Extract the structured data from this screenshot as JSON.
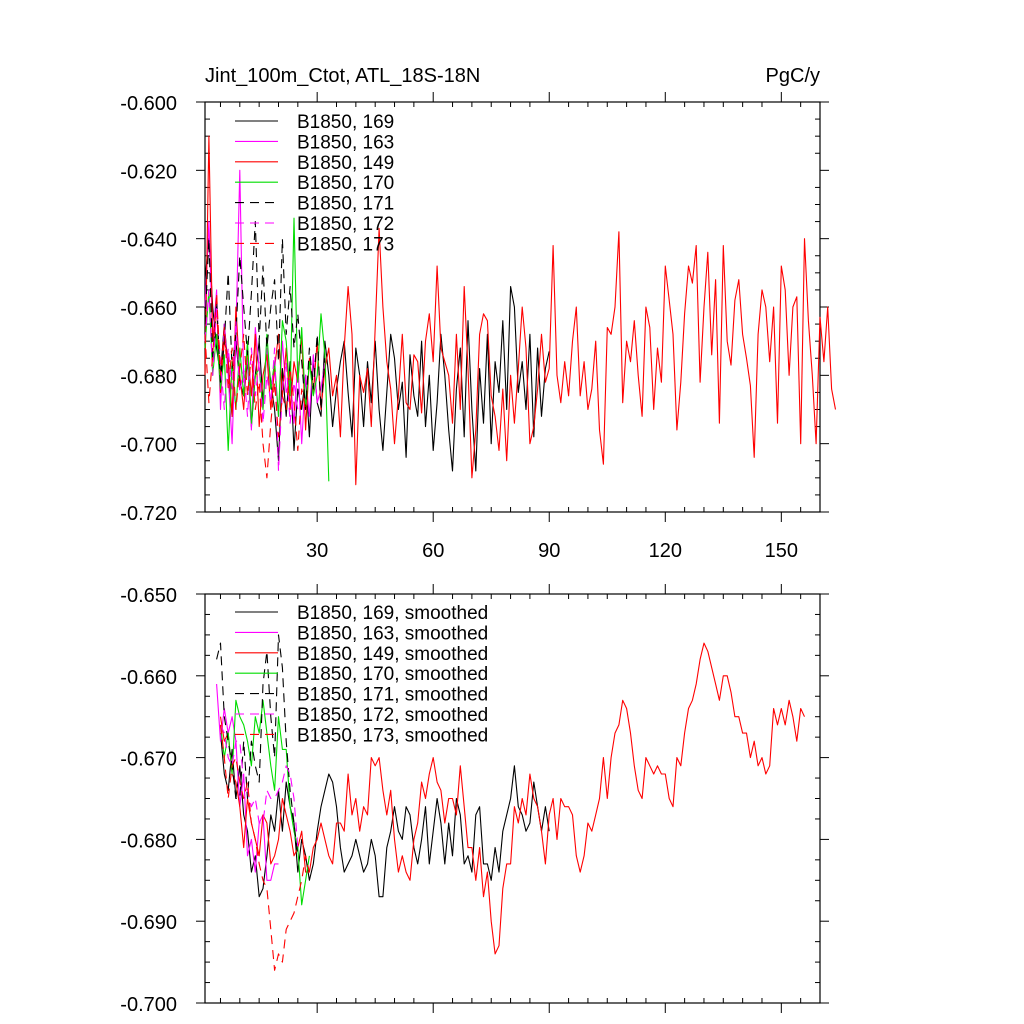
{
  "colors": {
    "169": "#000000",
    "163": "#ff00ff",
    "149": "#ff0000",
    "170": "#00dd00",
    "171": "#000000",
    "172": "#ff00ff",
    "173": "#ff0000"
  },
  "chart_data": [
    {
      "type": "line",
      "title": "Jint_100m_Ctot, ATL_18S-18N",
      "units": "PgC/y",
      "xlim": [
        1,
        160
      ],
      "ylim": [
        -0.72,
        -0.6
      ],
      "x_ticks": [
        30,
        60,
        90,
        120,
        150
      ],
      "y_ticks": [
        -0.72,
        -0.7,
        -0.68,
        -0.66,
        -0.64,
        -0.62,
        -0.6
      ],
      "y_tick_labels": [
        "-0.720",
        "-0.700",
        "-0.680",
        "-0.660",
        "-0.640",
        "-0.620",
        "-0.600"
      ],
      "legend_position": "top-left",
      "series": [
        {
          "name": "B1850, 169",
          "key": "169",
          "dash": false,
          "x0": 1,
          "values": [
            -0.652,
            -0.64,
            -0.66,
            -0.672,
            -0.68,
            -0.665,
            -0.678,
            -0.692,
            -0.67,
            -0.682,
            -0.686,
            -0.676,
            -0.695,
            -0.68,
            -0.67,
            -0.688,
            -0.672,
            -0.682,
            -0.69,
            -0.705,
            -0.678,
            -0.692,
            -0.676,
            -0.702,
            -0.684,
            -0.69,
            -0.68,
            -0.698,
            -0.675,
            -0.688,
            -0.692,
            -0.67,
            -0.68,
            -0.695,
            -0.684,
            -0.676,
            -0.67,
            -0.685,
            -0.698,
            -0.672,
            -0.68,
            -0.695,
            -0.676,
            -0.688,
            -0.67,
            -0.69,
            -0.702,
            -0.685,
            -0.668,
            -0.675,
            -0.69,
            -0.682,
            -0.704,
            -0.674,
            -0.686,
            -0.692,
            -0.67,
            -0.695,
            -0.68,
            -0.702,
            -0.688,
            -0.668,
            -0.68,
            -0.696,
            -0.708,
            -0.684,
            -0.672,
            -0.698,
            -0.664,
            -0.69,
            -0.708,
            -0.678,
            -0.694,
            -0.668,
            -0.7,
            -0.676,
            -0.685,
            -0.664,
            -0.69,
            -0.654,
            -0.66,
            -0.685,
            -0.676,
            -0.69,
            -0.668,
            -0.698,
            -0.672,
            -0.692,
            -0.678,
            -0.673
          ]
        },
        {
          "name": "B1850, 163",
          "key": "163",
          "dash": false,
          "x0": 1,
          "values": [
            -0.66,
            -0.635,
            -0.67,
            -0.655,
            -0.69,
            -0.665,
            -0.68,
            -0.7,
            -0.668,
            -0.62,
            -0.682,
            -0.675,
            -0.696,
            -0.666,
            -0.678,
            -0.69,
            -0.672,
            -0.684,
            -0.678,
            -0.692,
            -0.67,
            -0.685,
            -0.681,
            -0.694,
            -0.676,
            -0.7,
            -0.68,
            -0.692,
            -0.674,
            -0.688,
            -0.684,
            -0.676
          ]
        },
        {
          "name": "B1850, 149",
          "key": "149",
          "dash": false,
          "x0": 1,
          "values": [
            -0.68,
            -0.61,
            -0.67,
            -0.66,
            -0.685,
            -0.67,
            -0.675,
            -0.692,
            -0.66,
            -0.68,
            -0.69,
            -0.672,
            -0.686,
            -0.668,
            -0.695,
            -0.68,
            -0.674,
            -0.69,
            -0.678,
            -0.668,
            -0.686,
            -0.672,
            -0.69,
            -0.676,
            -0.682,
            -0.668,
            -0.696,
            -0.675,
            -0.685,
            -0.67,
            -0.69,
            -0.678,
            -0.672,
            -0.686,
            -0.68,
            -0.698,
            -0.672,
            -0.654,
            -0.668,
            -0.712,
            -0.68,
            -0.685,
            -0.678,
            -0.695,
            -0.666,
            -0.637,
            -0.66,
            -0.676,
            -0.684,
            -0.7,
            -0.686,
            -0.668,
            -0.688,
            -0.69,
            -0.674,
            -0.676,
            -0.691,
            -0.67,
            -0.662,
            -0.676,
            -0.648,
            -0.672,
            -0.676,
            -0.68,
            -0.694,
            -0.668,
            -0.69,
            -0.654,
            -0.678,
            -0.71,
            -0.696,
            -0.668,
            -0.662,
            -0.664,
            -0.686,
            -0.692,
            -0.702,
            -0.684,
            -0.705,
            -0.68,
            -0.694,
            -0.678,
            -0.66,
            -0.672,
            -0.7,
            -0.695,
            -0.684,
            -0.668,
            -0.682,
            -0.678,
            -0.642,
            -0.68,
            -0.688,
            -0.676,
            -0.686,
            -0.67,
            -0.66,
            -0.686,
            -0.676,
            -0.69,
            -0.684,
            -0.67,
            -0.696,
            -0.706,
            -0.666,
            -0.668,
            -0.66,
            -0.638,
            -0.688,
            -0.67,
            -0.676,
            -0.664,
            -0.68,
            -0.692,
            -0.66,
            -0.666,
            -0.69,
            -0.672,
            -0.682,
            -0.648,
            -0.658,
            -0.668,
            -0.696,
            -0.682,
            -0.662,
            -0.648,
            -0.653,
            -0.642,
            -0.682,
            -0.66,
            -0.644,
            -0.674,
            -0.652,
            -0.694,
            -0.642,
            -0.67,
            -0.677,
            -0.658,
            -0.652,
            -0.668,
            -0.675,
            -0.683,
            -0.704,
            -0.668,
            -0.655,
            -0.66,
            -0.676,
            -0.66,
            -0.694,
            -0.648,
            -0.655,
            -0.68,
            -0.66,
            -0.657,
            -0.7,
            -0.64,
            -0.664,
            -0.68,
            -0.7,
            -0.663,
            -0.676,
            -0.66,
            -0.684,
            -0.69
          ]
        },
        {
          "name": "B1850, 170",
          "key": "170",
          "dash": false,
          "x0": 1,
          "values": [
            -0.672,
            -0.655,
            -0.68,
            -0.668,
            -0.684,
            -0.674,
            -0.702,
            -0.676,
            -0.69,
            -0.672,
            -0.686,
            -0.67,
            -0.694,
            -0.68,
            -0.678,
            -0.69,
            -0.668,
            -0.684,
            -0.676,
            -0.692,
            -0.664,
            -0.67,
            -0.686,
            -0.634,
            -0.682,
            -0.666,
            -0.69,
            -0.676,
            -0.686,
            -0.68,
            -0.662,
            -0.674,
            -0.711
          ]
        },
        {
          "name": "B1850, 171",
          "key": "171",
          "dash": true,
          "x0": 1,
          "values": [
            -0.665,
            -0.64,
            -0.676,
            -0.658,
            -0.682,
            -0.67,
            -0.65,
            -0.678,
            -0.668,
            -0.645,
            -0.66,
            -0.674,
            -0.656,
            -0.635,
            -0.67,
            -0.648,
            -0.672,
            -0.66,
            -0.652,
            -0.676,
            -0.64,
            -0.668,
            -0.654,
            -0.672,
            -0.662,
            -0.676,
            -0.69,
            -0.672,
            -0.684,
            -0.668,
            -0.69,
            -0.675
          ]
        },
        {
          "name": "B1850, 172",
          "key": "172",
          "dash": true,
          "x0": 1,
          "values": [
            -0.67,
            -0.655,
            -0.68,
            -0.66,
            -0.676,
            -0.69,
            -0.672,
            -0.684,
            -0.664,
            -0.685,
            -0.678,
            -0.692,
            -0.672,
            -0.686,
            -0.676,
            -0.694,
            -0.68,
            -0.688,
            -0.672,
            -0.708,
            -0.684,
            -0.676,
            -0.694,
            -0.682,
            -0.69
          ]
        },
        {
          "name": "B1850, 173",
          "key": "173",
          "dash": true,
          "x0": 1,
          "values": [
            -0.668,
            -0.688,
            -0.674,
            -0.656,
            -0.68,
            -0.666,
            -0.684,
            -0.672,
            -0.69,
            -0.678,
            -0.668,
            -0.686,
            -0.674,
            -0.69,
            -0.682,
            -0.7,
            -0.71,
            -0.694,
            -0.682,
            -0.698,
            -0.686,
            -0.69,
            -0.678,
            -0.688,
            -0.702,
            -0.684,
            -0.69
          ]
        }
      ]
    },
    {
      "type": "line",
      "xlim": [
        1,
        160
      ],
      "ylim": [
        -0.7,
        -0.65
      ],
      "x_ticks": [
        30,
        60,
        90,
        120,
        150
      ],
      "y_ticks": [
        -0.7,
        -0.69,
        -0.68,
        -0.67,
        -0.66,
        -0.65
      ],
      "y_tick_labels": [
        "-0.700",
        "-0.690",
        "-0.680",
        "-0.670",
        "-0.660",
        "-0.650"
      ],
      "legend_position": "top-left",
      "series": [
        {
          "name": "B1850, 169, smoothed",
          "key": "169",
          "dash": false,
          "x0": 5,
          "values": [
            -0.667,
            -0.672,
            -0.674,
            -0.669,
            -0.675,
            -0.671,
            -0.677,
            -0.679,
            -0.684,
            -0.682,
            -0.687,
            -0.686,
            -0.682,
            -0.677,
            -0.679,
            -0.674,
            -0.679,
            -0.673,
            -0.676,
            -0.678,
            -0.684,
            -0.68,
            -0.682,
            -0.685,
            -0.683,
            -0.679,
            -0.676,
            -0.674,
            -0.672,
            -0.673,
            -0.676,
            -0.681,
            -0.684,
            -0.683,
            -0.682,
            -0.68,
            -0.682,
            -0.684,
            -0.683,
            -0.68,
            -0.682,
            -0.687,
            -0.687,
            -0.681,
            -0.679,
            -0.676,
            -0.679,
            -0.68,
            -0.676,
            -0.677,
            -0.681,
            -0.683,
            -0.68,
            -0.676,
            -0.683,
            -0.679,
            -0.675,
            -0.678,
            -0.683,
            -0.678,
            -0.682,
            -0.675,
            -0.677,
            -0.683,
            -0.682,
            -0.684,
            -0.677,
            -0.676,
            -0.683,
            -0.683,
            -0.685,
            -0.681,
            -0.684,
            -0.679,
            -0.677,
            -0.675,
            -0.671,
            -0.676,
            -0.677,
            -0.679,
            -0.678,
            -0.673,
            -0.676,
            -0.679,
            -0.676,
            -0.679
          ]
        },
        {
          "name": "B1850, 163, smoothed",
          "key": "163",
          "dash": false,
          "x0": 4,
          "values": [
            -0.661,
            -0.668,
            -0.664,
            -0.667,
            -0.665,
            -0.668,
            -0.676,
            -0.672,
            -0.682,
            -0.68,
            -0.684,
            -0.678,
            -0.677,
            -0.685,
            -0.685,
            -0.683,
            -0.683
          ]
        },
        {
          "name": "B1850, 149, smoothed",
          "key": "149",
          "dash": false,
          "x0": 5,
          "values": [
            -0.665,
            -0.668,
            -0.667,
            -0.672,
            -0.673,
            -0.676,
            -0.681,
            -0.675,
            -0.678,
            -0.68,
            -0.682,
            -0.677,
            -0.678,
            -0.683,
            -0.682,
            -0.68,
            -0.675,
            -0.677,
            -0.679,
            -0.682,
            -0.681,
            -0.679,
            -0.684,
            -0.684,
            -0.681,
            -0.68,
            -0.678,
            -0.68,
            -0.682,
            -0.683,
            -0.678,
            -0.678,
            -0.679,
            -0.672,
            -0.677,
            -0.675,
            -0.679,
            -0.676,
            -0.677,
            -0.67,
            -0.671,
            -0.67,
            -0.674,
            -0.677,
            -0.674,
            -0.68,
            -0.684,
            -0.682,
            -0.684,
            -0.685,
            -0.68,
            -0.678,
            -0.673,
            -0.675,
            -0.672,
            -0.67,
            -0.673,
            -0.674,
            -0.678,
            -0.675,
            -0.675,
            -0.677,
            -0.671,
            -0.676,
            -0.681,
            -0.681,
            -0.685,
            -0.681,
            -0.687,
            -0.684,
            -0.69,
            -0.694,
            -0.693,
            -0.686,
            -0.683,
            -0.683,
            -0.676,
            -0.678,
            -0.675,
            -0.677,
            -0.672,
            -0.675,
            -0.676,
            -0.679,
            -0.683,
            -0.677,
            -0.675,
            -0.68,
            -0.675,
            -0.676,
            -0.676,
            -0.677,
            -0.682,
            -0.684,
            -0.682,
            -0.678,
            -0.679,
            -0.677,
            -0.675,
            -0.67,
            -0.675,
            -0.67,
            -0.667,
            -0.666,
            -0.663,
            -0.664,
            -0.667,
            -0.671,
            -0.674,
            -0.675,
            -0.67,
            -0.671,
            -0.672,
            -0.671,
            -0.672,
            -0.672,
            -0.675,
            -0.676,
            -0.67,
            -0.671,
            -0.667,
            -0.664,
            -0.663,
            -0.661,
            -0.658,
            -0.656,
            -0.657,
            -0.659,
            -0.661,
            -0.663,
            -0.66,
            -0.66,
            -0.662,
            -0.665,
            -0.665,
            -0.667,
            -0.667,
            -0.67,
            -0.668,
            -0.671,
            -0.67,
            -0.672,
            -0.671,
            -0.664,
            -0.666,
            -0.664,
            -0.666,
            -0.663,
            -0.665,
            -0.668,
            -0.664,
            -0.665
          ]
        },
        {
          "name": "B1850, 170, smoothed",
          "key": "170",
          "dash": false,
          "x0": 5,
          "values": [
            -0.666,
            -0.67,
            -0.667,
            -0.672,
            -0.663,
            -0.665,
            -0.666,
            -0.668,
            -0.671,
            -0.665,
            -0.667,
            -0.663,
            -0.667,
            -0.671,
            -0.674,
            -0.665,
            -0.669,
            -0.669,
            -0.676,
            -0.679,
            -0.681,
            -0.688,
            -0.685,
            -0.682
          ]
        },
        {
          "name": "B1850, 171, smoothed",
          "key": "171",
          "dash": true,
          "x0": 4,
          "values": [
            -0.658,
            -0.656,
            -0.665,
            -0.668,
            -0.671,
            -0.675,
            -0.675,
            -0.668,
            -0.675,
            -0.668,
            -0.671,
            -0.673,
            -0.661,
            -0.657,
            -0.665,
            -0.67,
            -0.655,
            -0.659,
            -0.668,
            -0.674,
            -0.678,
            -0.682
          ]
        },
        {
          "name": "B1850, 172, smoothed",
          "key": "172",
          "dash": true,
          "x0": 5,
          "values": [
            -0.666,
            -0.667,
            -0.67,
            -0.671,
            -0.668,
            -0.668,
            -0.673,
            -0.674,
            -0.676,
            -0.675,
            -0.678,
            -0.678,
            -0.674,
            -0.675,
            -0.675,
            -0.674,
            -0.673,
            -0.671,
            -0.672,
            -0.675,
            -0.681
          ]
        },
        {
          "name": "B1850, 173, smoothed",
          "key": "173",
          "dash": true,
          "x0": 5,
          "values": [
            -0.666,
            -0.67,
            -0.675,
            -0.671,
            -0.67,
            -0.673,
            -0.675,
            -0.673,
            -0.678,
            -0.68,
            -0.683,
            -0.685,
            -0.686,
            -0.691,
            -0.696,
            -0.694,
            -0.695,
            -0.691,
            -0.69,
            -0.689,
            -0.687,
            -0.685,
            -0.682,
            -0.684
          ]
        }
      ]
    }
  ]
}
